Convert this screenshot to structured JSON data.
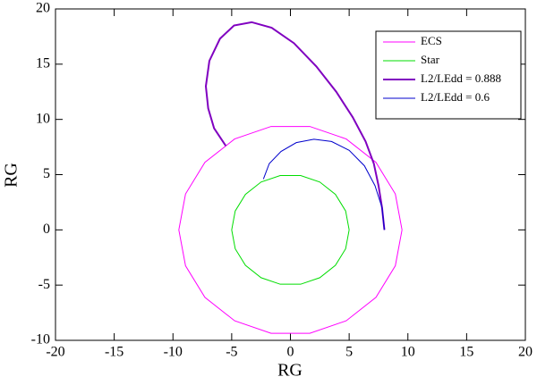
{
  "chart_data": {
    "type": "line",
    "xlabel": "RG",
    "ylabel": "RG",
    "xlim": [
      -20,
      20
    ],
    "ylim": [
      -10,
      20
    ],
    "xticks": [
      -20,
      -15,
      -10,
      -5,
      0,
      5,
      10,
      15,
      20
    ],
    "yticks": [
      -10,
      -5,
      0,
      5,
      10,
      15,
      20
    ],
    "legend": "upper right",
    "series": [
      {
        "name": "ECS",
        "color": "#ff00ff",
        "width": 1,
        "x": [
          9.5,
          8.93,
          7.28,
          4.75,
          1.65,
          -1.65,
          -4.75,
          -7.28,
          -8.93,
          -9.5,
          -8.93,
          -7.28,
          -4.75,
          -1.65,
          1.65,
          4.75,
          7.28,
          8.93,
          9.5
        ],
        "values": [
          0,
          3.25,
          6.11,
          8.23,
          9.36,
          9.36,
          8.23,
          6.11,
          3.25,
          0,
          -3.25,
          -6.11,
          -8.23,
          -9.36,
          -9.36,
          -8.23,
          -6.11,
          -3.25,
          0
        ]
      },
      {
        "name": "Star",
        "color": "#00dd00",
        "width": 1,
        "x": [
          5,
          4.7,
          3.83,
          2.5,
          0.87,
          -0.87,
          -2.5,
          -3.83,
          -4.7,
          -5,
          -4.7,
          -3.83,
          -2.5,
          -0.87,
          0.87,
          2.5,
          3.83,
          4.7,
          5
        ],
        "values": [
          0,
          1.71,
          3.21,
          4.33,
          4.92,
          4.92,
          4.33,
          3.21,
          1.71,
          0,
          -1.71,
          -3.21,
          -4.33,
          -4.92,
          -4.92,
          -4.33,
          -3.21,
          -1.71,
          0
        ]
      },
      {
        "name": "L2/LEdd = 0.888",
        "color": "#8000c0",
        "width": 2,
        "x": [
          8,
          7.8,
          7.5,
          7.1,
          6.4,
          5.3,
          3.9,
          2.2,
          0.3,
          -1.6,
          -3.3,
          -4.8,
          -6,
          -6.9,
          -7.2,
          -7,
          -6.5,
          -5.5
        ],
        "values": [
          0,
          2,
          4,
          6,
          8,
          10.2,
          12.5,
          14.8,
          16.9,
          18.3,
          18.8,
          18.5,
          17.3,
          15.3,
          13,
          11,
          9.2,
          7.6
        ]
      },
      {
        "name": "L2/LEdd = 0.6",
        "color": "#0000cc",
        "width": 1,
        "x": [
          8,
          7.8,
          7.2,
          6.3,
          5,
          3.5,
          2,
          0.5,
          -0.8,
          -1.8,
          -2.3
        ],
        "values": [
          0,
          2,
          4,
          5.8,
          7.2,
          8,
          8.2,
          7.9,
          7.1,
          6,
          4.6
        ]
      }
    ]
  }
}
